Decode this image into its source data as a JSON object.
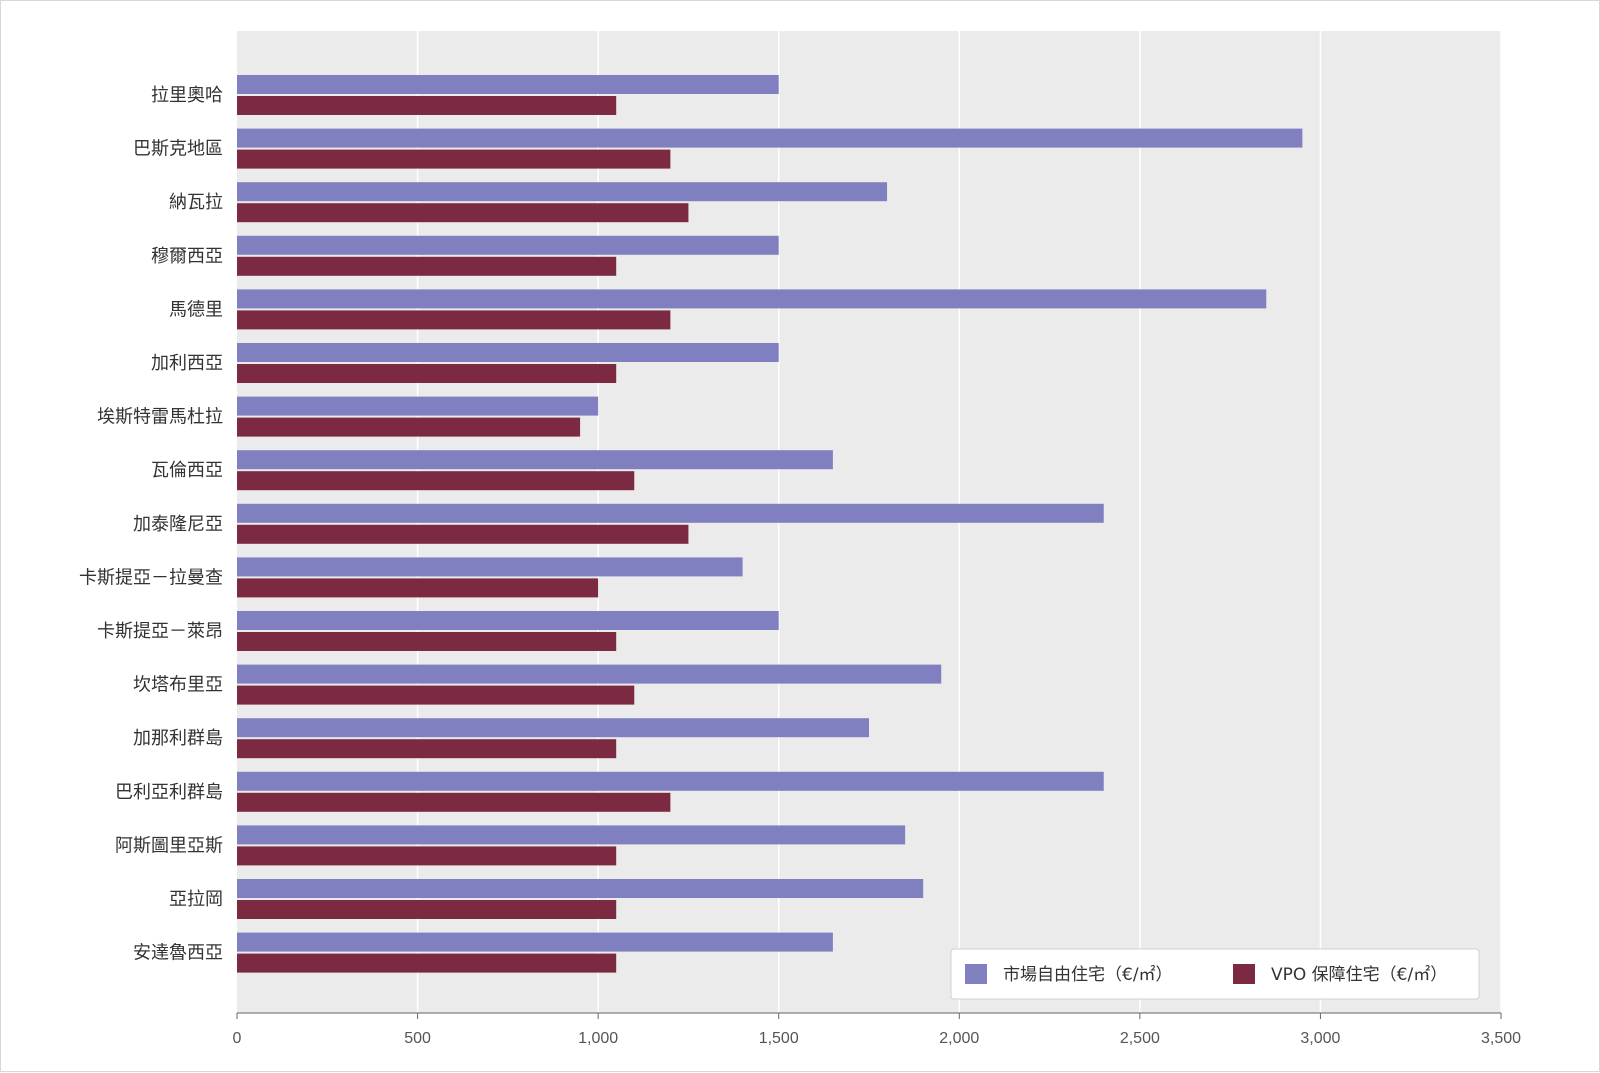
{
  "chart_data": {
    "type": "bar",
    "orientation": "horizontal",
    "categories": [
      "拉里奧哈",
      "巴斯克地區",
      "納瓦拉",
      "穆爾西亞",
      "馬德里",
      "加利西亞",
      "埃斯特雷馬杜拉",
      "瓦倫西亞",
      "加泰隆尼亞",
      "卡斯提亞－拉曼查",
      "卡斯提亞－萊昂",
      "坎塔布里亞",
      "加那利群島",
      "巴利亞利群島",
      "阿斯圖里亞斯",
      "亞拉岡",
      "安達魯西亞"
    ],
    "series": [
      {
        "name": "市場自由住宅（€/㎡）",
        "color": "#8080c0",
        "values": [
          1500,
          2950,
          1800,
          1500,
          2850,
          1500,
          1000,
          1650,
          2400,
          1400,
          1500,
          1950,
          1750,
          2400,
          1850,
          1900,
          1650
        ]
      },
      {
        "name": "VPO 保障住宅（€/㎡）",
        "color": "#7b2a42",
        "values": [
          1050,
          1200,
          1250,
          1050,
          1200,
          1050,
          950,
          1100,
          1250,
          1000,
          1050,
          1100,
          1050,
          1200,
          1050,
          1050,
          1050
        ]
      }
    ],
    "xlim": [
      0,
      3500
    ],
    "xticks": [
      0,
      500,
      1000,
      1500,
      2000,
      2500,
      3000,
      3500
    ],
    "xtick_labels": [
      "0",
      "500",
      "1,000",
      "1,500",
      "2,000",
      "2,500",
      "3,000",
      "3,500"
    ],
    "grid": true,
    "legend_position": "bottom-right",
    "plot_background": "#ebebeb",
    "title": "",
    "xlabel": "",
    "ylabel": ""
  }
}
